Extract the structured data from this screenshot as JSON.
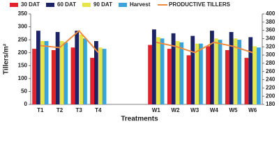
{
  "chart_data": {
    "type": "bar",
    "x_label": "Treatments",
    "y_label": "Tillers/m²",
    "categories": [
      "T1",
      "T2",
      "T3",
      "T4",
      null,
      null,
      "W1",
      "W2",
      "W3",
      "W4",
      "W5",
      "W6"
    ],
    "series": [
      {
        "name": "30 DAT",
        "color": "#e3232b",
        "values": [
          215,
          210,
          220,
          180,
          null,
          null,
          230,
          215,
          190,
          225,
          210,
          180
        ]
      },
      {
        "name": "60 DAT",
        "color": "#1c2466",
        "values": [
          285,
          280,
          285,
          245,
          null,
          null,
          290,
          275,
          265,
          285,
          280,
          260
        ]
      },
      {
        "name": "90 DAT",
        "color": "#e6e64c",
        "values": [
          245,
          245,
          270,
          220,
          null,
          null,
          260,
          245,
          235,
          255,
          255,
          225
        ]
      },
      {
        "name": "Harvest",
        "color": "#3ba3da",
        "values": [
          245,
          240,
          255,
          215,
          null,
          null,
          255,
          240,
          235,
          250,
          250,
          220
        ]
      },
      {
        "name": "PRODUCTIVE TILLERS",
        "color": "#ef8a3c",
        "type": "line",
        "axis": "y2",
        "values": [
          323,
          318,
          359,
          306,
          null,
          null,
          331,
          321,
          306,
          331,
          321,
          306
        ]
      }
    ],
    "ylim": [
      0,
      350
    ],
    "yticks": [
      0,
      50,
      100,
      150,
      200,
      250,
      300,
      350
    ],
    "y2lim": [
      180,
      400
    ],
    "y2ticks": [
      180,
      200,
      220,
      240,
      260,
      280,
      300,
      320,
      340,
      360,
      380,
      400
    ]
  }
}
